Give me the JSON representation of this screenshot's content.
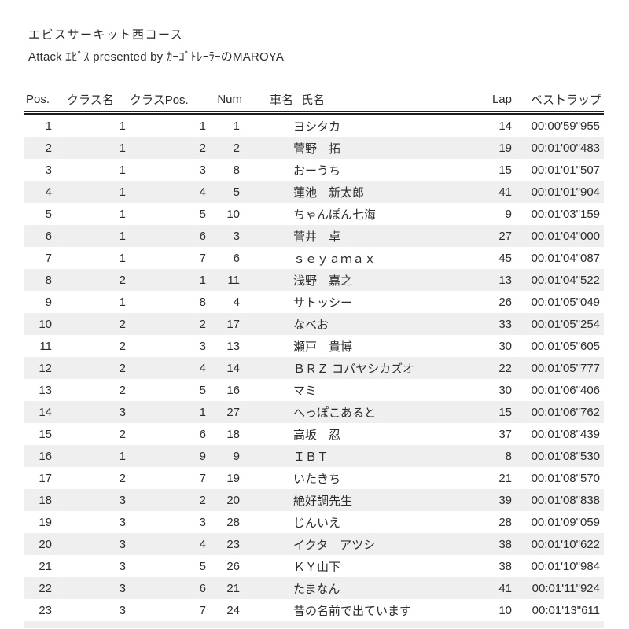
{
  "page": {
    "background": "#ffffff",
    "text_color": "#2d2d2d",
    "row_alt_color": "#efefef"
  },
  "header": {
    "title": "エビスサーキット西コース",
    "subtitle": "Attack ｴﾋﾞｽ presented by ｶｰｺﾞﾄﾚｰﾗｰのMAROYA"
  },
  "table": {
    "columns": [
      "Pos.",
      "クラス名",
      "クラスPos.",
      "Num",
      "車名",
      "氏名",
      "Lap",
      "ベストラップ"
    ],
    "rows": [
      [
        "1",
        "1",
        "1",
        "1",
        "",
        "ヨシタカ",
        "14",
        "00:00'59\"955"
      ],
      [
        "2",
        "1",
        "2",
        "2",
        "",
        "菅野　拓",
        "19",
        "00:01'00\"483"
      ],
      [
        "3",
        "1",
        "3",
        "8",
        "",
        "おーうち",
        "15",
        "00:01'01\"507"
      ],
      [
        "4",
        "1",
        "4",
        "5",
        "",
        "蓮池　新太郎",
        "41",
        "00:01'01\"904"
      ],
      [
        "5",
        "1",
        "5",
        "10",
        "",
        "ちゃんぽん七海",
        "9",
        "00:01'03\"159"
      ],
      [
        "6",
        "1",
        "6",
        "3",
        "",
        "菅井　卓",
        "27",
        "00:01'04\"000"
      ],
      [
        "7",
        "1",
        "7",
        "6",
        "",
        "ｓｅｙａｍａｘ",
        "45",
        "00:01'04\"087"
      ],
      [
        "8",
        "2",
        "1",
        "11",
        "",
        "浅野　嘉之",
        "13",
        "00:01'04\"522"
      ],
      [
        "9",
        "1",
        "8",
        "4",
        "",
        "サトッシー",
        "26",
        "00:01'05\"049"
      ],
      [
        "10",
        "2",
        "2",
        "17",
        "",
        "なべお",
        "33",
        "00:01'05\"254"
      ],
      [
        "11",
        "2",
        "3",
        "13",
        "",
        "瀬戸　貴博",
        "30",
        "00:01'05\"605"
      ],
      [
        "12",
        "2",
        "4",
        "14",
        "",
        "ＢＲＺ コバヤシカズオ",
        "22",
        "00:01'05\"777"
      ],
      [
        "13",
        "2",
        "5",
        "16",
        "",
        "マミ",
        "30",
        "00:01'06\"406"
      ],
      [
        "14",
        "3",
        "1",
        "27",
        "",
        "へっぽこあると",
        "15",
        "00:01'06\"762"
      ],
      [
        "15",
        "2",
        "6",
        "18",
        "",
        "高坂　忍",
        "37",
        "00:01'08\"439"
      ],
      [
        "16",
        "1",
        "9",
        "9",
        "",
        "ＩＢＴ",
        "8",
        "00:01'08\"530"
      ],
      [
        "17",
        "2",
        "7",
        "19",
        "",
        "いたきち",
        "21",
        "00:01'08\"570"
      ],
      [
        "18",
        "3",
        "2",
        "20",
        "",
        "絶好調先生",
        "39",
        "00:01'08\"838"
      ],
      [
        "19",
        "3",
        "3",
        "28",
        "",
        "じんいえ",
        "28",
        "00:01'09\"059"
      ],
      [
        "20",
        "3",
        "4",
        "23",
        "",
        "イクタ　アツシ",
        "38",
        "00:01'10\"622"
      ],
      [
        "21",
        "3",
        "5",
        "26",
        "",
        "ＫＹ山下",
        "38",
        "00:01'10\"984"
      ],
      [
        "22",
        "3",
        "6",
        "21",
        "",
        "たまなん",
        "41",
        "00:01'11\"924"
      ],
      [
        "23",
        "3",
        "7",
        "24",
        "",
        "昔の名前で出ています",
        "10",
        "00:01'13\"611"
      ]
    ],
    "next_row_partially_visible": true
  }
}
